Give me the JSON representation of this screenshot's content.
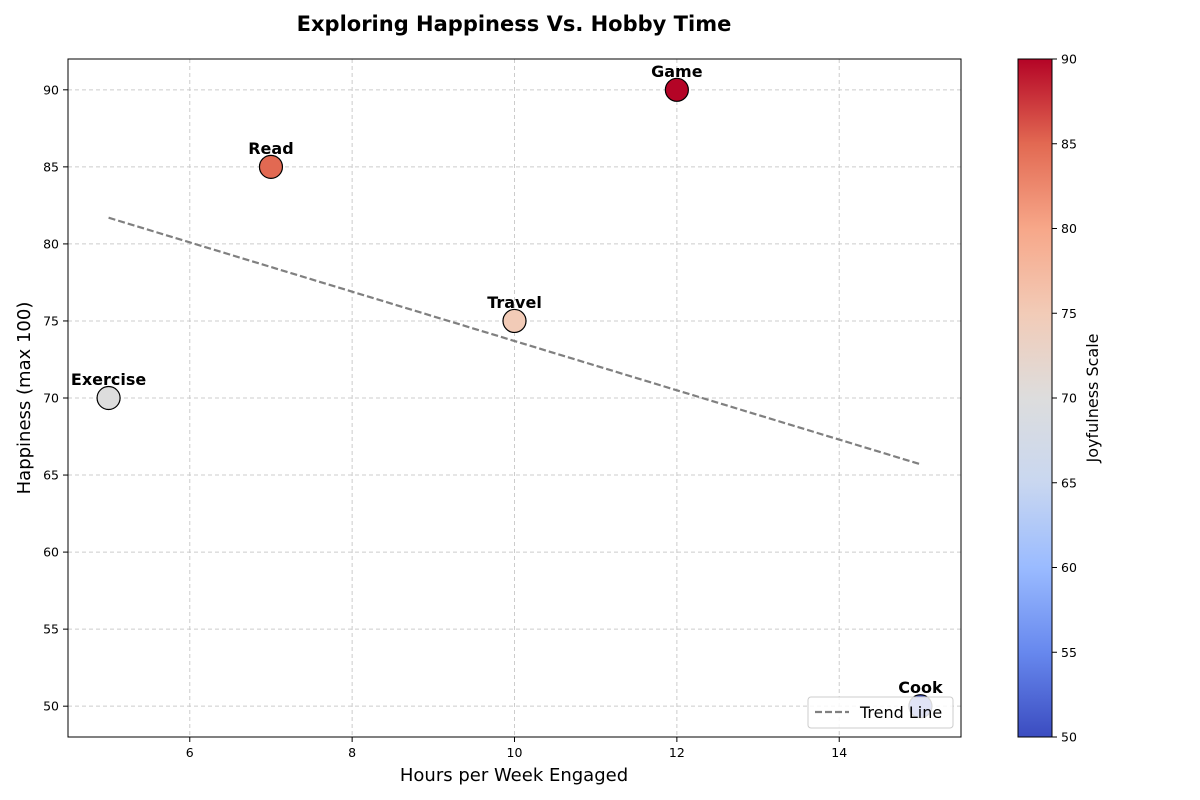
{
  "chart_data": {
    "type": "scatter",
    "title": "Exploring Happiness Vs. Hobby Time",
    "xlabel": "Hours per Week Engaged",
    "ylabel": "Happiness (max 100)",
    "xlim": [
      4.5,
      15.5
    ],
    "ylim": [
      48,
      92
    ],
    "xticks": [
      6,
      8,
      10,
      12,
      14
    ],
    "yticks": [
      50,
      55,
      60,
      65,
      70,
      75,
      80,
      85,
      90
    ],
    "grid": true,
    "points": [
      {
        "label": "Exercise",
        "x": 5,
        "y": 70,
        "joy": 70
      },
      {
        "label": "Read",
        "x": 7,
        "y": 85,
        "joy": 85
      },
      {
        "label": "Travel",
        "x": 10,
        "y": 75,
        "joy": 75
      },
      {
        "label": "Game",
        "x": 12,
        "y": 90,
        "joy": 90
      },
      {
        "label": "Cook",
        "x": 15,
        "y": 50,
        "joy": 50
      }
    ],
    "trend_line": {
      "label": "Trend Line",
      "x": [
        5,
        15
      ],
      "y": [
        81.7,
        65.7
      ],
      "color": "#808080"
    },
    "legend": {
      "position": "lower-right",
      "entries": [
        "Trend Line"
      ]
    },
    "colorbar": {
      "label": "Joyfulness Scale",
      "range": [
        50,
        90
      ],
      "ticks": [
        50,
        55,
        60,
        65,
        70,
        75,
        80,
        85,
        90
      ],
      "colormap": "coolwarm",
      "stops": [
        "#3b4cc0",
        "#6788ee",
        "#9abbff",
        "#c9d7f0",
        "#dddddd",
        "#f2cbb7",
        "#f7a789",
        "#e26952",
        "#b40426"
      ]
    }
  }
}
